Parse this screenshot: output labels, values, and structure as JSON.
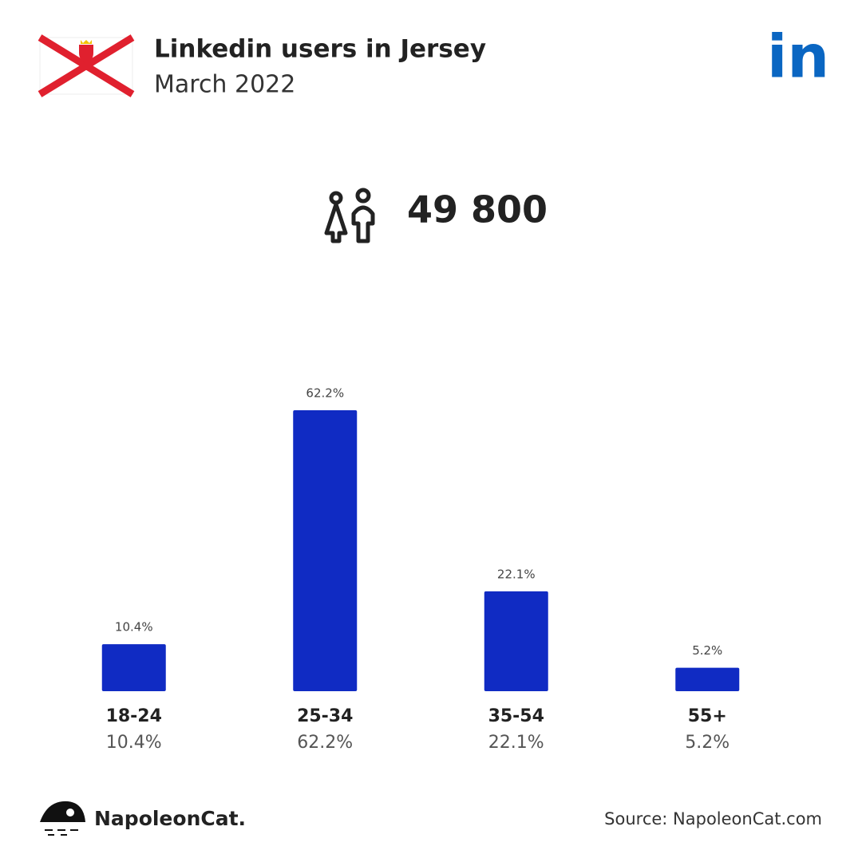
{
  "chart_data": {
    "type": "bar",
    "title": "Linkedin users in Jersey",
    "subtitle": "March 2022",
    "logo_text": "in",
    "total": {
      "value": 49800,
      "label": "49 800"
    },
    "categories": [
      "18-24",
      "25-34",
      "35-54",
      "55+"
    ],
    "values": [
      10.4,
      62.2,
      22.1,
      5.2
    ],
    "value_labels": [
      "10.4%",
      "62.2%",
      "22.1%",
      "5.2%"
    ],
    "color": "#102bc3",
    "brand": "NapoleonCat.",
    "source": "Source: NapoleonCat.com"
  }
}
